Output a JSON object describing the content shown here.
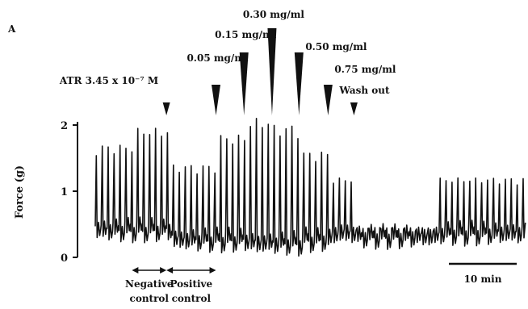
{
  "panel_label": "A",
  "chart_data": {
    "type": "line",
    "xlabel": "",
    "ylabel": "Force (g)",
    "ylim": [
      0,
      2
    ],
    "yticks": [
      {
        "value": 0,
        "label": "0"
      },
      {
        "value": 1,
        "label": "1"
      },
      {
        "value": 2,
        "label": "2"
      }
    ],
    "grid": false,
    "scale_bar_label": "10 min",
    "annotations": [
      {
        "id": "atr",
        "text": "ATR 3.45 x 10⁻⁷ M",
        "arrow_style": "small",
        "x_min": 6.6
      },
      {
        "id": "c005",
        "text": "0.05 mg/ml",
        "arrow_style": "medium",
        "x_min": 11.2
      },
      {
        "id": "c015",
        "text": "0.15 mg/ml",
        "arrow_style": "tall",
        "x_min": 13.8
      },
      {
        "id": "c030",
        "text": "0.30 mg/ml",
        "arrow_style": "tallest",
        "x_min": 16.4
      },
      {
        "id": "c050",
        "text": "0.50 mg/ml",
        "arrow_style": "tall",
        "x_min": 18.9
      },
      {
        "id": "c075",
        "text": "0.75 mg/ml",
        "arrow_style": "medium",
        "x_min": 21.6
      },
      {
        "id": "wash",
        "text": "Wash out",
        "arrow_style": "small",
        "x_min": 24.0
      }
    ],
    "ranges": [
      {
        "id": "neg",
        "line1": "Negative",
        "line2": "control",
        "x_start": 3.4,
        "x_end": 6.6
      },
      {
        "id": "pos",
        "line1": "Positive",
        "line2": "control",
        "x_start": 6.6,
        "x_end": 11.2
      }
    ],
    "trace_segments": [
      {
        "x_start": 0.0,
        "x_end": 3.4,
        "peak": 1.7,
        "baseline": 0.35
      },
      {
        "x_start": 3.4,
        "x_end": 6.6,
        "peak": 1.95,
        "baseline": 0.35
      },
      {
        "x_start": 6.6,
        "x_end": 11.2,
        "peak": 1.4,
        "baseline": 0.2
      },
      {
        "x_start": 11.2,
        "x_end": 13.8,
        "peak": 1.85,
        "baseline": 0.2
      },
      {
        "x_start": 13.8,
        "x_end": 16.4,
        "peak": 2.1,
        "baseline": 0.15
      },
      {
        "x_start": 16.4,
        "x_end": 18.9,
        "peak": 2.0,
        "baseline": 0.15
      },
      {
        "x_start": 18.9,
        "x_end": 21.6,
        "peak": 1.6,
        "baseline": 0.2
      },
      {
        "x_start": 21.6,
        "x_end": 24.0,
        "peak": 1.2,
        "baseline": 0.3
      },
      {
        "x_start": 24.0,
        "x_end": 31.5,
        "peak": 0.45,
        "baseline": 0.25
      },
      {
        "x_start": 31.5,
        "x_end": 40.0,
        "peak": 1.2,
        "baseline": 0.3
      }
    ],
    "x_range_min": [
      0,
      40
    ]
  }
}
